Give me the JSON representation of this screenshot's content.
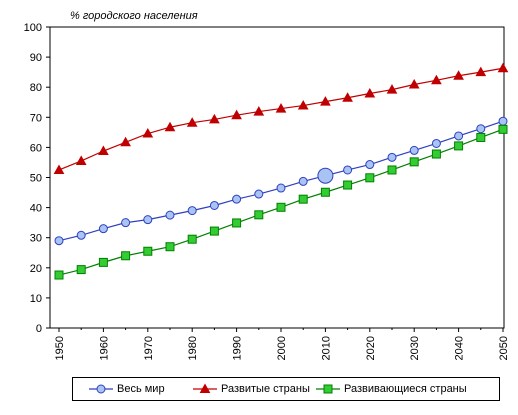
{
  "chart_data": {
    "type": "line",
    "ylabel": "% городского населения",
    "xlabel": "",
    "ylim": [
      0,
      100
    ],
    "yticks": [
      0,
      10,
      20,
      30,
      40,
      50,
      60,
      70,
      80,
      90,
      100
    ],
    "xticks": [
      1950,
      1960,
      1970,
      1980,
      1990,
      2000,
      2010,
      2020,
      2030,
      2040,
      2050
    ],
    "xlim": [
      1950,
      2050
    ],
    "grid": false,
    "legend_position": "bottom",
    "x": [
      1950,
      1955,
      1960,
      1965,
      1970,
      1975,
      1980,
      1985,
      1990,
      1995,
      2000,
      2005,
      2010,
      2015,
      2020,
      2025,
      2030,
      2035,
      2040,
      2045,
      2050
    ],
    "series": [
      {
        "name": "Весь мир",
        "color": "#2f3fbf",
        "fill": "#a9c4f2",
        "marker": "circle",
        "highlight_x": 2010,
        "values": [
          29,
          30.8,
          33,
          35,
          36,
          37.5,
          39,
          40.7,
          42.8,
          44.5,
          46.5,
          48.7,
          50.6,
          52.5,
          54.3,
          56.7,
          59,
          61.3,
          63.8,
          66.2,
          68.7
        ]
      },
      {
        "name": "Развитые страны",
        "color": "#c00000",
        "fill": "#c00000",
        "marker": "triangle",
        "values": [
          52.5,
          55.5,
          58.8,
          61.7,
          64.6,
          66.7,
          68.2,
          69.3,
          70.7,
          71.9,
          72.9,
          73.9,
          75.2,
          76.5,
          77.9,
          79.2,
          80.9,
          82.3,
          83.8,
          85,
          86.3
        ]
      },
      {
        "name": "Развивающиеся страны",
        "color": "#008000",
        "fill": "#33cc33",
        "marker": "square",
        "values": [
          17.6,
          19.4,
          21.8,
          24,
          25.5,
          27,
          29.5,
          32.2,
          34.9,
          37.6,
          40.1,
          42.8,
          45.1,
          47.5,
          49.9,
          52.5,
          55.2,
          57.8,
          60.5,
          63.3,
          66
        ]
      }
    ]
  }
}
